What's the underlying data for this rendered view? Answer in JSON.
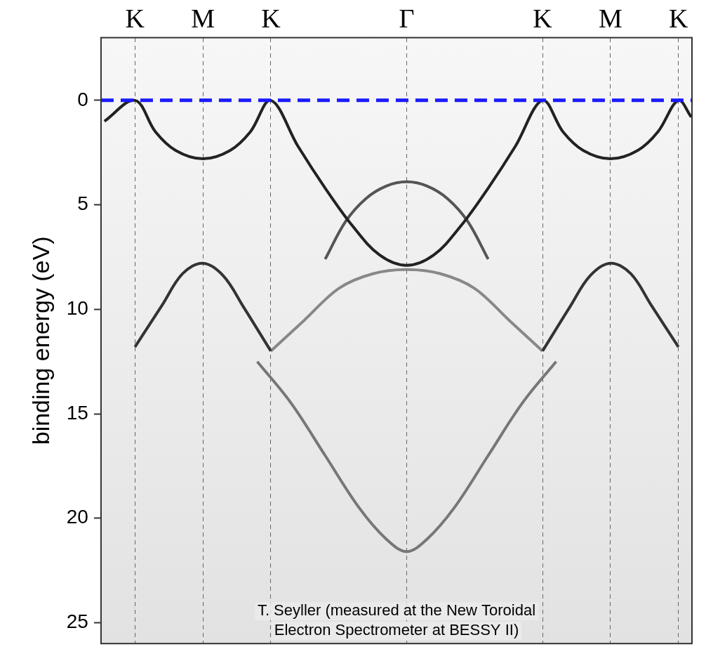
{
  "chart_data": {
    "type": "line",
    "y_label": "binding energy (eV)",
    "annotation": [
      "T. Seyller (measured at the New Toroidal",
      "Electron Spectrometer at BESSY II)"
    ],
    "xlim": [
      -4.5,
      4.2
    ],
    "xticks": [
      {
        "value": -4,
        "label": "K"
      },
      {
        "value": -3,
        "label": "M"
      },
      {
        "value": -2,
        "label": "K"
      },
      {
        "value": 0,
        "label": "Γ"
      },
      {
        "value": 2,
        "label": "K"
      },
      {
        "value": 3,
        "label": "M"
      },
      {
        "value": 4,
        "label": "K"
      }
    ],
    "ylim": [
      -3,
      26
    ],
    "yticks": [
      0,
      5,
      10,
      15,
      20,
      25
    ],
    "grid": true,
    "legend": false,
    "series": [
      {
        "color": "#222222",
        "line_style": "solid",
        "marker": "none",
        "x": [
          -4.45,
          -4.0,
          -3.7,
          -3.4,
          -3.0,
          -2.6,
          -2.3,
          -2.0,
          -1.6,
          -1.2,
          -0.8,
          -0.4,
          0,
          0.4,
          0.8,
          1.2,
          1.6,
          2.0,
          2.3,
          2.6,
          3.0,
          3.4,
          3.7,
          4.0,
          4.19
        ],
        "values": [
          1.0,
          0.0,
          1.5,
          2.4,
          2.8,
          2.4,
          1.5,
          0.0,
          2.2,
          4.2,
          6.0,
          7.4,
          7.9,
          7.4,
          6.0,
          4.2,
          2.2,
          0.0,
          1.5,
          2.4,
          2.8,
          2.4,
          1.5,
          0.0,
          0.8
        ]
      },
      {
        "color": "#555555",
        "line_style": "solid",
        "marker": "none",
        "x": [
          -1.2,
          -0.9,
          -0.6,
          -0.3,
          0,
          0.3,
          0.6,
          0.9,
          1.2
        ],
        "values": [
          7.6,
          5.8,
          4.7,
          4.1,
          3.9,
          4.1,
          4.7,
          5.8,
          7.6
        ]
      },
      {
        "color": "#333333",
        "line_style": "solid",
        "marker": "none",
        "x": [
          -4.0,
          -3.6,
          -3.3,
          -3.0,
          -2.7,
          -2.4,
          -2.0
        ],
        "values": [
          11.8,
          9.8,
          8.3,
          7.8,
          8.4,
          9.9,
          12.0
        ]
      },
      {
        "color": "#333333",
        "line_style": "solid",
        "marker": "none",
        "x": [
          2.0,
          2.4,
          2.7,
          3.0,
          3.3,
          3.6,
          4.0
        ],
        "values": [
          12.0,
          9.9,
          8.4,
          7.8,
          8.3,
          9.8,
          11.8
        ]
      },
      {
        "color": "#888888",
        "line_style": "solid",
        "marker": "none",
        "x": [
          -2.0,
          -1.5,
          -1.0,
          -0.5,
          0,
          0.5,
          1.0,
          1.5,
          2.0
        ],
        "values": [
          12.0,
          10.5,
          9.0,
          8.3,
          8.1,
          8.3,
          9.0,
          10.5,
          12.0
        ]
      },
      {
        "color": "#777777",
        "line_style": "solid",
        "marker": "none",
        "x": [
          -2.2,
          -1.7,
          -1.2,
          -0.7,
          -0.3,
          0,
          0.3,
          0.7,
          1.2,
          1.7,
          2.2
        ],
        "values": [
          12.5,
          14.5,
          17.0,
          19.5,
          21.0,
          21.6,
          21.0,
          19.5,
          17.0,
          14.5,
          12.5
        ]
      },
      {
        "color": "#1a1aff",
        "line_style": "dashed",
        "marker": "none",
        "x": [
          -4.5,
          4.2
        ],
        "values": [
          0,
          0
        ]
      }
    ]
  }
}
